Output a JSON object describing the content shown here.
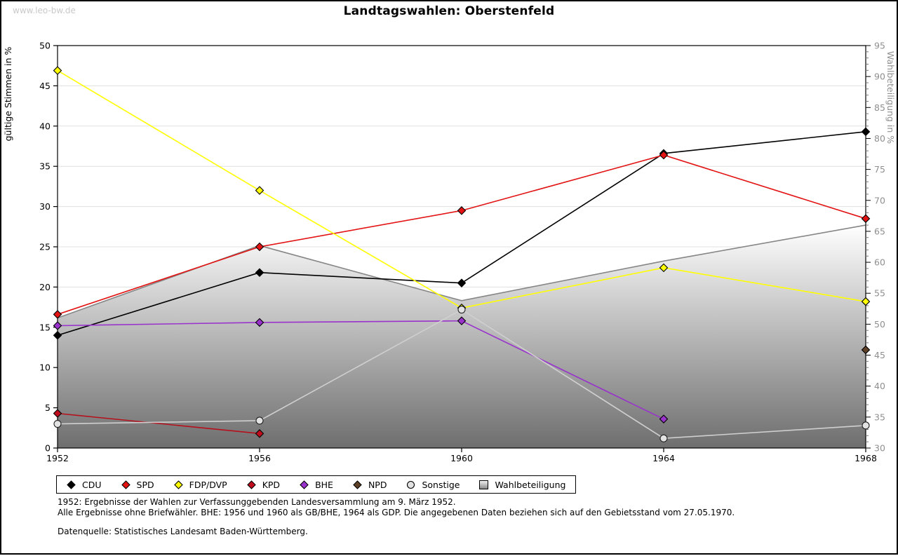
{
  "page": {
    "watermark": "www.leo-bw.de",
    "title": "Landtagswahlen: Oberstenfeld"
  },
  "chart_data": {
    "type": "line",
    "title": "Landtagswahlen: Oberstenfeld",
    "categories": [
      "1952",
      "1956",
      "1960",
      "1964",
      "1968"
    ],
    "left_axis": {
      "label": "gültige Stimmen in %",
      "min": 0,
      "max": 50,
      "tick_step": 5
    },
    "right_axis": {
      "label": "Wahlbeteiligung in %",
      "min": 30,
      "max": 95,
      "tick_step": 5,
      "minor_step": 1
    },
    "grid": "horizontal-left-ticks",
    "legend_position": "bottom",
    "series": [
      {
        "name": "CDU",
        "kind": "line",
        "axis": "left",
        "color": "#000000",
        "marker": "diamond",
        "marker_fill": "#000000",
        "values": [
          14.0,
          21.8,
          20.5,
          36.6,
          39.3
        ]
      },
      {
        "name": "SPD",
        "kind": "line",
        "axis": "left",
        "color": "#e31313",
        "marker": "diamond",
        "marker_fill": "#e31313",
        "values": [
          16.6,
          25.0,
          29.5,
          36.4,
          28.5
        ]
      },
      {
        "name": "FDP/DVP",
        "kind": "line",
        "axis": "left",
        "color": "#ffff00",
        "marker": "diamond",
        "marker_fill": "#ffff00",
        "values": [
          46.9,
          32.0,
          17.4,
          22.4,
          18.2
        ]
      },
      {
        "name": "KPD",
        "kind": "line",
        "axis": "left",
        "color": "#b5101c",
        "marker": "diamond",
        "marker_fill": "#c00d1e",
        "values": [
          4.3,
          1.8,
          null,
          null,
          null
        ]
      },
      {
        "name": "BHE",
        "kind": "line",
        "axis": "left",
        "color": "#9933cc",
        "marker": "diamond",
        "marker_fill": "#9933cc",
        "values": [
          15.2,
          15.6,
          15.8,
          3.6,
          null
        ]
      },
      {
        "name": "NPD",
        "kind": "line",
        "axis": "left",
        "color": "#5e4027",
        "marker": "diamond",
        "marker_fill": "#5e4027",
        "values": [
          null,
          null,
          null,
          null,
          12.2
        ]
      },
      {
        "name": "Sonstige",
        "kind": "line",
        "axis": "left",
        "color": "#cfcfcf",
        "marker": "circle",
        "marker_fill": "#e2e2e2",
        "values": [
          3.0,
          3.4,
          17.2,
          1.2,
          2.8
        ]
      },
      {
        "name": "Wahlbeteiligung",
        "kind": "area",
        "axis": "right",
        "color": "#868686",
        "fill_top": "#ffffff",
        "fill_bottom": "#6e6e6e",
        "values": [
          51.0,
          62.7,
          53.8,
          60.2,
          66.0
        ]
      }
    ]
  },
  "footnotes": {
    "line1": "1952: Ergebnisse der Wahlen zur Verfassunggebenden Landesversammlung am 9. März 1952.",
    "line2": "Alle Ergebnisse ohne Briefwähler. BHE: 1956 und 1960 als GB/BHE, 1964 als GDP. Die angegebenen Daten beziehen sich auf den Gebietsstand vom 27.05.1970.",
    "source": "Datenquelle: Statistisches Landesamt Baden-Württemberg."
  },
  "colors": {
    "grid": "#e0e0e0",
    "frame": "#000000",
    "right_axis_text": "#8f8f8f",
    "watermark_text": "#c9c9c9"
  }
}
